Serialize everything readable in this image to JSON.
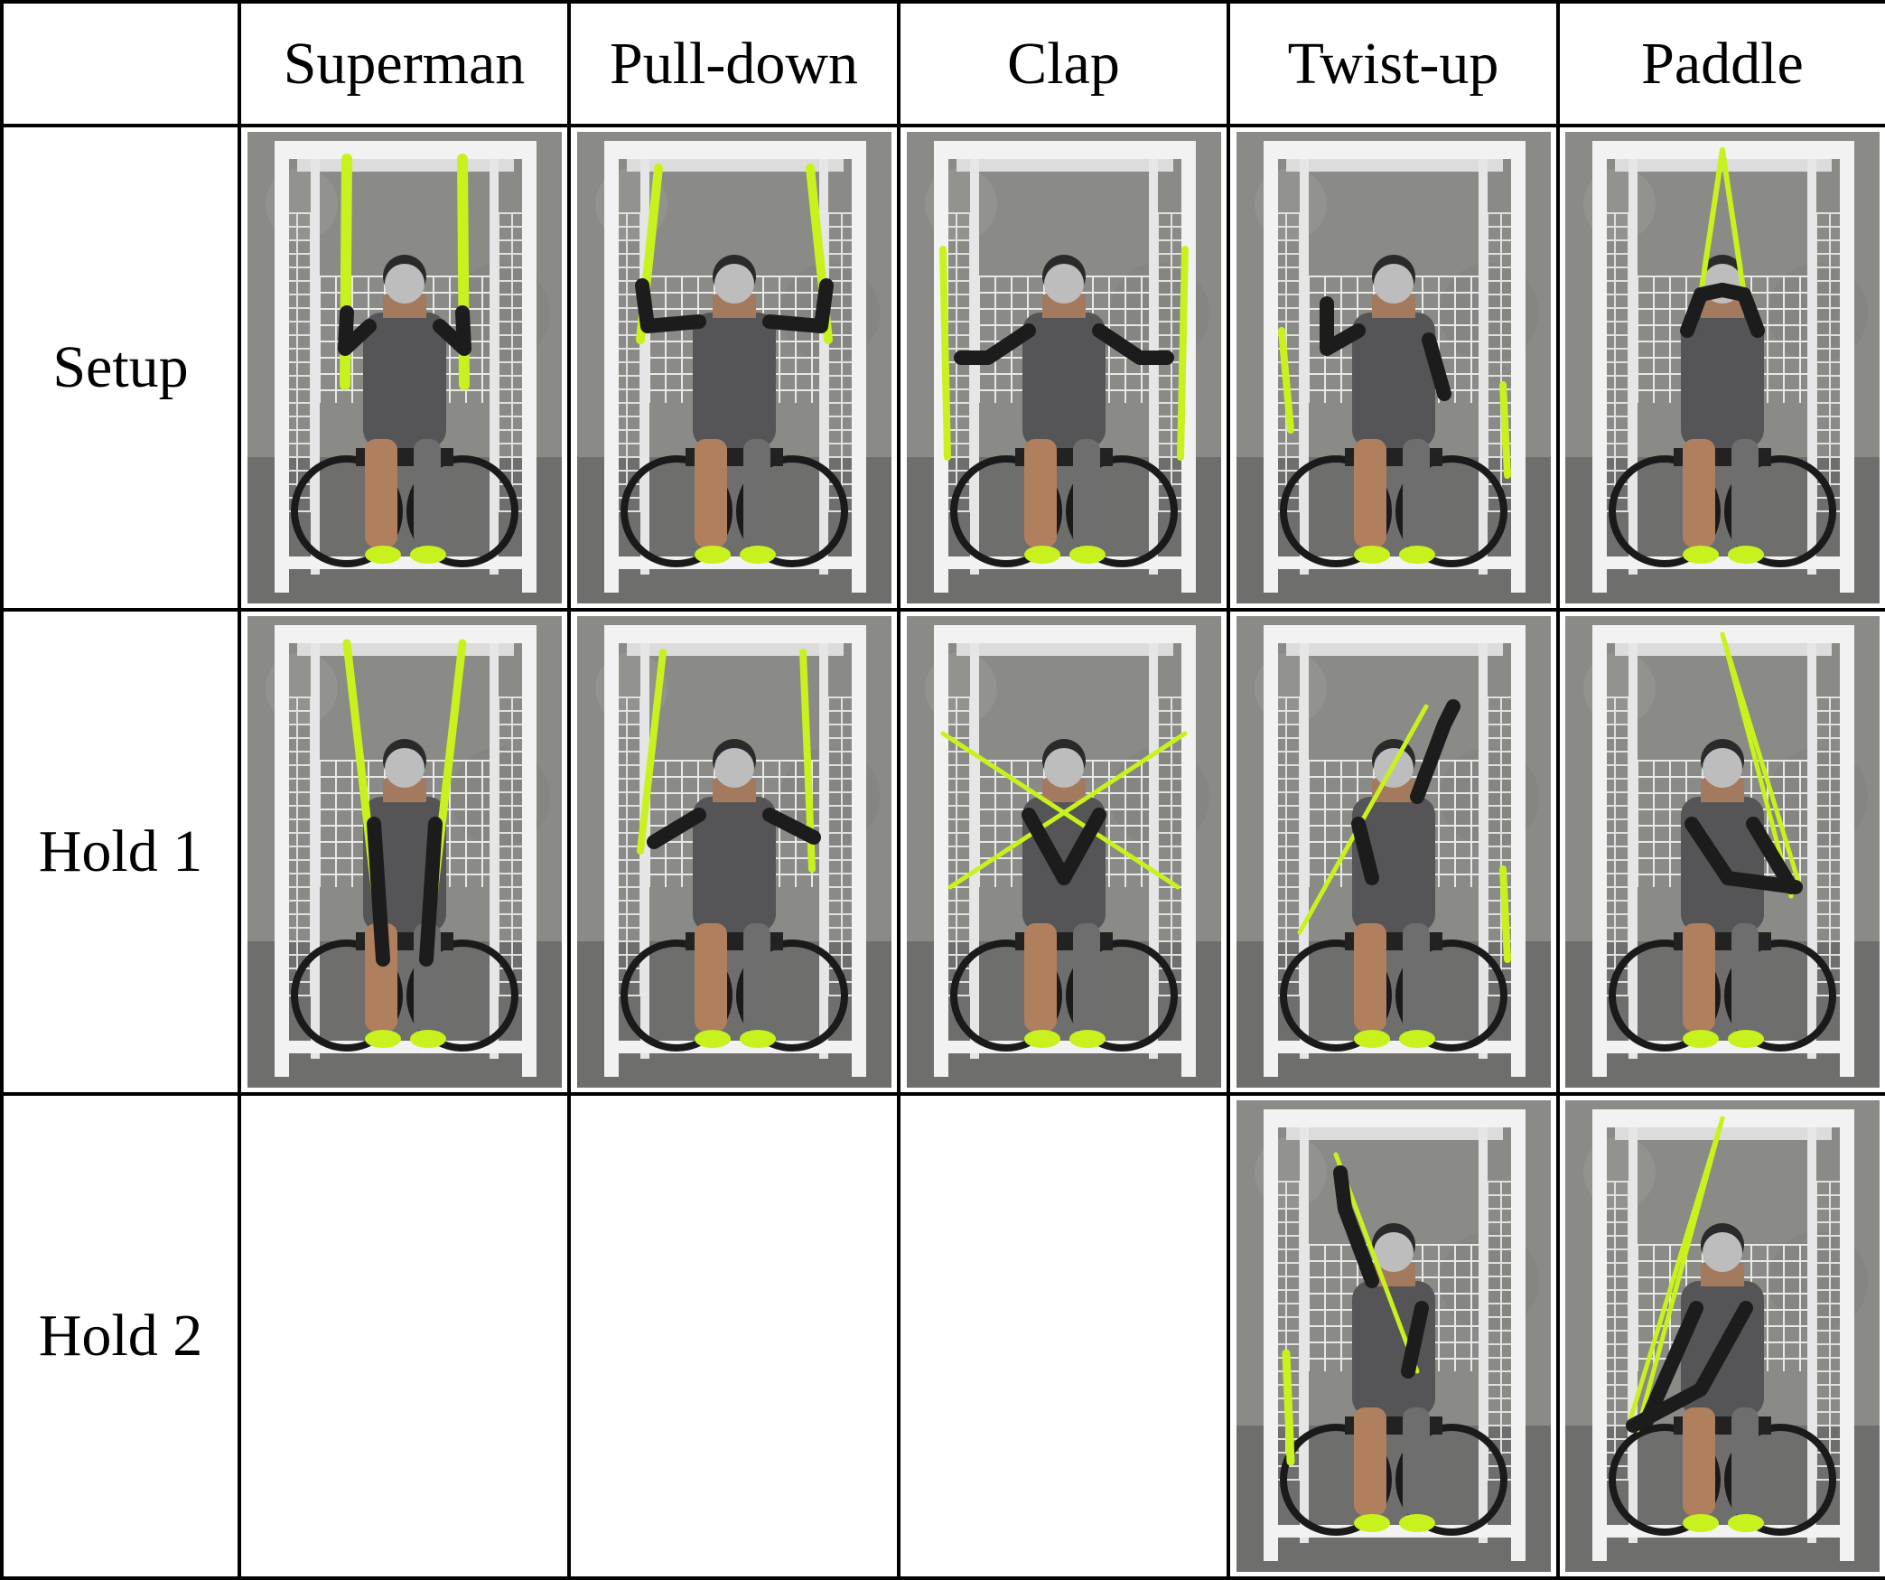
{
  "table": {
    "columns": [
      "",
      "Superman",
      "Pull-down",
      "Clap",
      "Twist-up",
      "Paddle"
    ],
    "rows": [
      {
        "label": "Setup",
        "cells": [
          {
            "icon": "photo-superman-setup"
          },
          {
            "icon": "photo-pull-down-setup"
          },
          {
            "icon": "photo-clap-setup"
          },
          {
            "icon": "photo-twist-up-setup"
          },
          {
            "icon": "photo-paddle-setup"
          }
        ]
      },
      {
        "label": "Hold 1",
        "cells": [
          {
            "icon": "photo-superman-hold-1"
          },
          {
            "icon": "photo-pull-down-hold-1"
          },
          {
            "icon": "photo-clap-hold-1"
          },
          {
            "icon": "photo-twist-up-hold-1"
          },
          {
            "icon": "photo-paddle-hold-1"
          }
        ]
      },
      {
        "label": "Hold 2",
        "cells": [
          null,
          null,
          null,
          {
            "icon": "photo-twist-up-hold-2"
          },
          {
            "icon": "photo-paddle-hold-2"
          }
        ]
      }
    ]
  },
  "colors": {
    "band": "#c8f21e",
    "wall": "#8a8a87",
    "floor": "#6e6e6c",
    "frame": "#f2f2f2",
    "shirt": "#555558",
    "face_blur": "#bdbdbd"
  }
}
